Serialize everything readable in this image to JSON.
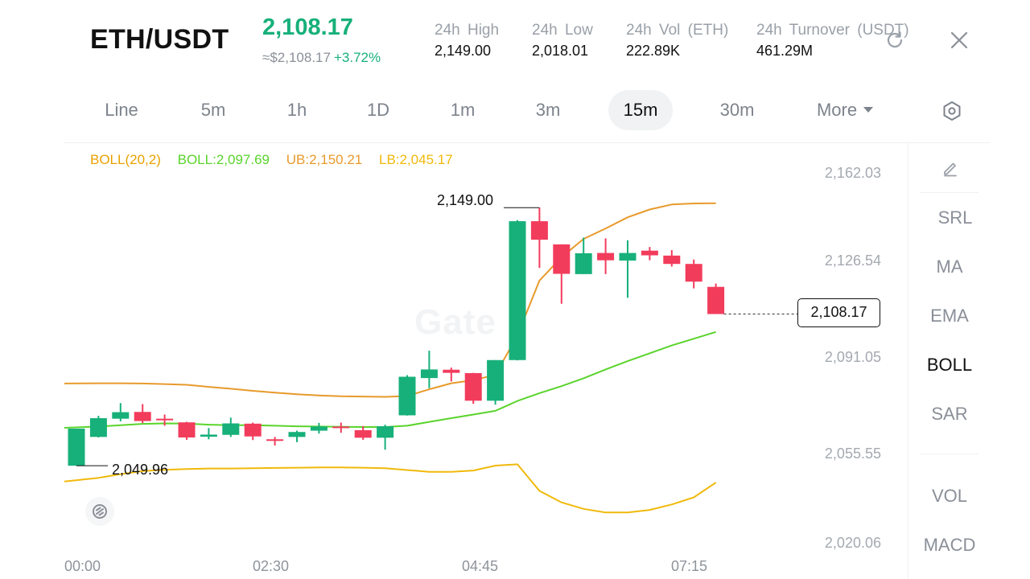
{
  "header": {
    "pair": "ETH/USDT",
    "last_price": "2,108.17",
    "fiat_price": "≈$2,108.17",
    "change": "+3.72%",
    "stats": [
      {
        "label": "24h High",
        "value": "2,149.00"
      },
      {
        "label": "24h Low",
        "value": "2,018.01"
      },
      {
        "label": "24h Vol (ETH)",
        "value": "222.89K"
      },
      {
        "label": "24h Turnover (USDT)",
        "value": "461.29M"
      }
    ],
    "refresh_icon": "refresh-icon",
    "close_icon": "close-icon"
  },
  "timeframes": {
    "items": [
      "Line",
      "5m",
      "1h",
      "1D",
      "1m",
      "3m",
      "15m",
      "30m"
    ],
    "more_label": "More",
    "active": "15m",
    "settings_icon": "hexagon-settings-icon"
  },
  "indicator_legend": {
    "name": "BOLL(20,2)",
    "mid": "BOLL:2,097.69",
    "upper": "UB:2,150.21",
    "lower": "LB:2,045.17",
    "colors": {
      "name": "#e8a200",
      "mid": "#5ad42c",
      "upper": "#e89a2c",
      "lower": "#f0b90b"
    }
  },
  "price_axis": [
    "2,162.03",
    "2,126.54",
    "2,091.05",
    "2,055.55",
    "2,020.06"
  ],
  "time_axis": [
    "00:00",
    "02:30",
    "04:45",
    "07:15"
  ],
  "annotations": {
    "high_marker": "2,149.00",
    "low_marker": "2,049.96",
    "last_price": "2,108.17"
  },
  "watermark": "Gate",
  "sidebar": {
    "draw_icon": "pencil-icon",
    "main_indicators": [
      "SRL",
      "MA",
      "EMA",
      "BOLL",
      "SAR"
    ],
    "sub_indicators": [
      "VOL",
      "MACD"
    ],
    "active": "BOLL"
  },
  "colors": {
    "up": "#17b07a",
    "down": "#f23c5c",
    "accent": "#17b07a"
  },
  "chart_data": {
    "type": "candlestick",
    "interval": "15m",
    "price_range": [
      2020.06,
      2162.03
    ],
    "candles": [
      {
        "o": 2049.96,
        "h": 2064.2,
        "l": 2049.96,
        "c": 2064.2
      },
      {
        "o": 2061.0,
        "h": 2069.1,
        "l": 2060.8,
        "c": 2068.2
      },
      {
        "o": 2068.0,
        "h": 2074.0,
        "l": 2067.0,
        "c": 2070.5
      },
      {
        "o": 2070.6,
        "h": 2073.6,
        "l": 2066.3,
        "c": 2067.1
      },
      {
        "o": 2068.0,
        "h": 2069.6,
        "l": 2065.3,
        "c": 2067.4
      },
      {
        "o": 2066.6,
        "h": 2066.8,
        "l": 2059.9,
        "c": 2060.8
      },
      {
        "o": 2061.1,
        "h": 2064.4,
        "l": 2060.1,
        "c": 2061.9
      },
      {
        "o": 2061.8,
        "h": 2068.4,
        "l": 2061.0,
        "c": 2066.2
      },
      {
        "o": 2066.1,
        "h": 2066.5,
        "l": 2059.8,
        "c": 2061.2
      },
      {
        "o": 2060.1,
        "h": 2061.0,
        "l": 2057.7,
        "c": 2060.0
      },
      {
        "o": 2061.0,
        "h": 2063.4,
        "l": 2059.0,
        "c": 2062.9
      },
      {
        "o": 2063.4,
        "h": 2066.4,
        "l": 2062.3,
        "c": 2065.0
      },
      {
        "o": 2065.0,
        "h": 2066.5,
        "l": 2062.6,
        "c": 2064.4
      },
      {
        "o": 2063.6,
        "h": 2065.2,
        "l": 2059.9,
        "c": 2060.7
      },
      {
        "o": 2060.7,
        "h": 2065.7,
        "l": 2056.1,
        "c": 2065.1
      },
      {
        "o": 2069.3,
        "h": 2084.7,
        "l": 2069.2,
        "c": 2084.1
      },
      {
        "o": 2083.6,
        "h": 2094.1,
        "l": 2079.7,
        "c": 2086.9
      },
      {
        "o": 2086.8,
        "h": 2087.6,
        "l": 2082.3,
        "c": 2085.6
      },
      {
        "o": 2085.5,
        "h": 2085.6,
        "l": 2073.7,
        "c": 2074.9
      },
      {
        "o": 2074.9,
        "h": 2090.5,
        "l": 2073.4,
        "c": 2090.5
      },
      {
        "o": 2090.5,
        "h": 2144.2,
        "l": 2090.4,
        "c": 2143.8
      },
      {
        "o": 2143.8,
        "h": 2149.0,
        "l": 2125.9,
        "c": 2136.7
      },
      {
        "o": 2134.9,
        "h": 2134.9,
        "l": 2112.1,
        "c": 2123.6
      },
      {
        "o": 2123.5,
        "h": 2137.5,
        "l": 2123.5,
        "c": 2131.5
      },
      {
        "o": 2131.6,
        "h": 2137.2,
        "l": 2123.5,
        "c": 2128.8
      },
      {
        "o": 2128.7,
        "h": 2136.5,
        "l": 2114.4,
        "c": 2131.6
      },
      {
        "o": 2132.5,
        "h": 2133.9,
        "l": 2128.8,
        "c": 2130.7
      },
      {
        "o": 2130.6,
        "h": 2132.7,
        "l": 2126.4,
        "c": 2127.4
      },
      {
        "o": 2127.4,
        "h": 2129.1,
        "l": 2118.0,
        "c": 2120.6
      },
      {
        "o": 2118.6,
        "h": 2119.9,
        "l": 2108.17,
        "c": 2108.17
      }
    ],
    "boll_upper": [
      2081.5,
      2081.6,
      2081.6,
      2081.5,
      2081.3,
      2081.0,
      2080.2,
      2079.5,
      2078.7,
      2078.0,
      2077.4,
      2076.9,
      2076.6,
      2076.5,
      2076.4,
      2076.7,
      2079.3,
      2081.6,
      2082.8,
      2084.8,
      2100.0,
      2121.0,
      2130.0,
      2137.0,
      2141.0,
      2145.3,
      2148.3,
      2150.2,
      2150.6,
      2150.7
    ],
    "boll_mid": [
      2064.5,
      2065.0,
      2065.5,
      2066.0,
      2066.2,
      2066.1,
      2065.7,
      2065.5,
      2065.5,
      2065.3,
      2065.1,
      2065.0,
      2064.9,
      2064.8,
      2064.8,
      2065.3,
      2066.8,
      2068.2,
      2069.6,
      2071.0,
      2074.8,
      2077.8,
      2080.5,
      2083.5,
      2086.9,
      2090.1,
      2093.1,
      2096.1,
      2098.7,
      2101.3
    ],
    "boll_lower": [
      2043.9,
      2045.3,
      2046.7,
      2047.9,
      2048.4,
      2048.7,
      2048.9,
      2048.9,
      2049.0,
      2049.1,
      2049.2,
      2049.3,
      2049.3,
      2049.2,
      2049.0,
      2048.3,
      2047.6,
      2047.6,
      2048.1,
      2050.0,
      2050.5,
      2040.3,
      2035.9,
      2033.4,
      2032.0,
      2032.0,
      2033.0,
      2035.1,
      2037.8,
      2043.5
    ],
    "time_labels": [
      "00:00",
      "02:30",
      "04:45",
      "07:15"
    ]
  }
}
